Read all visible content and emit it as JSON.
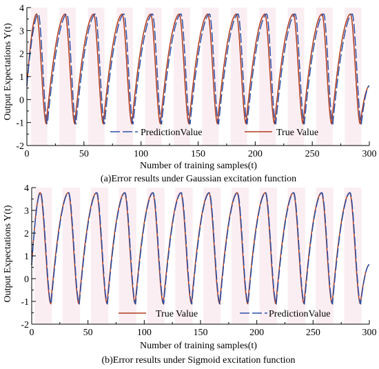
{
  "colors": {
    "true_value": "#b03a1a",
    "prediction_value": "#2a50a8",
    "axis": "#000000",
    "shade": "#f6d9e4"
  },
  "chart_data": [
    {
      "type": "line",
      "caption": "(a)Error results under Gaussian excitation function",
      "xlabel": "Number of training samples(t)",
      "ylabel": "Output Expectations Y(t)",
      "xlim": [
        0,
        300
      ],
      "ylim": [
        -2,
        4
      ],
      "xticks": [
        0,
        50,
        100,
        150,
        200,
        250,
        300
      ],
      "yticks": [
        -2,
        -1,
        0,
        1,
        2,
        3,
        4
      ],
      "grid": false,
      "legend": {
        "position": "bottom",
        "order": [
          "PredictionValue",
          "True Value"
        ]
      },
      "series": [
        {
          "name": "True Value",
          "color_key": "true_value",
          "style": "solid",
          "peaks": [
            {
              "x": 8.5,
              "y": 3.72
            },
            {
              "x": 33.5,
              "y": 3.72
            },
            {
              "x": 58.5,
              "y": 3.72
            },
            {
              "x": 83.5,
              "y": 3.72
            },
            {
              "x": 108.5,
              "y": 3.72
            },
            {
              "x": 133.5,
              "y": 3.72
            },
            {
              "x": 158.5,
              "y": 3.72
            },
            {
              "x": 183.5,
              "y": 3.72
            },
            {
              "x": 208.5,
              "y": 3.72
            },
            {
              "x": 233.5,
              "y": 3.72
            },
            {
              "x": 258.5,
              "y": 3.72
            },
            {
              "x": 283.5,
              "y": 3.72
            }
          ],
          "troughs": [
            {
              "x": 17,
              "y": -1.05
            },
            {
              "x": 42,
              "y": -1.05
            },
            {
              "x": 67,
              "y": -1.05
            },
            {
              "x": 92,
              "y": -1.05
            },
            {
              "x": 117,
              "y": -1.05
            },
            {
              "x": 142,
              "y": -1.05
            },
            {
              "x": 167,
              "y": -1.05
            },
            {
              "x": 192,
              "y": -1.05
            },
            {
              "x": 217,
              "y": -1.05
            },
            {
              "x": 242,
              "y": -1.05
            },
            {
              "x": 267,
              "y": -1.05
            },
            {
              "x": 292,
              "y": -1.05
            }
          ],
          "start": {
            "x": 0,
            "y": 0.6
          },
          "end": {
            "x": 300,
            "y": 0.6
          }
        },
        {
          "name": "PredictionValue",
          "color_key": "prediction_value",
          "style": "dashed",
          "peaks": [
            {
              "x": 10,
              "y": 3.72
            },
            {
              "x": 35,
              "y": 3.72
            },
            {
              "x": 60,
              "y": 3.72
            },
            {
              "x": 85,
              "y": 3.72
            },
            {
              "x": 110,
              "y": 3.72
            },
            {
              "x": 135,
              "y": 3.72
            },
            {
              "x": 160,
              "y": 3.72
            },
            {
              "x": 185,
              "y": 3.72
            },
            {
              "x": 210,
              "y": 3.72
            },
            {
              "x": 235,
              "y": 3.72
            },
            {
              "x": 260,
              "y": 3.72
            },
            {
              "x": 285,
              "y": 3.72
            }
          ],
          "troughs": [
            {
              "x": 18,
              "y": -1.05
            },
            {
              "x": 43,
              "y": -1.05
            },
            {
              "x": 68,
              "y": -1.05
            },
            {
              "x": 93,
              "y": -1.05
            },
            {
              "x": 118,
              "y": -1.05
            },
            {
              "x": 143,
              "y": -1.05
            },
            {
              "x": 168,
              "y": -1.05
            },
            {
              "x": 193,
              "y": -1.05
            },
            {
              "x": 218,
              "y": -1.05
            },
            {
              "x": 243,
              "y": -1.05
            },
            {
              "x": 268,
              "y": -1.05
            },
            {
              "x": 293,
              "y": -1.05
            }
          ],
          "start": {
            "x": 0,
            "y": 0.6
          },
          "end": {
            "x": 300,
            "y": 0.6
          }
        }
      ]
    },
    {
      "type": "line",
      "caption": "(b)Error results under Sigmoid excitation function",
      "xlabel": "Number of training samples(t)",
      "ylabel": "Output Expectations Y(t)",
      "xlim": [
        0,
        300
      ],
      "ylim": [
        -2,
        4
      ],
      "xticks": [
        0,
        50,
        100,
        150,
        200,
        250,
        300
      ],
      "yticks": [
        -2,
        -1,
        0,
        1,
        2,
        3,
        4
      ],
      "grid": false,
      "legend": {
        "position": "bottom",
        "order": [
          "True Value",
          "PredictionValue"
        ]
      },
      "series": [
        {
          "name": "True Value",
          "color_key": "true_value",
          "style": "solid",
          "peaks": [
            {
              "x": 7.5,
              "y": 3.78
            },
            {
              "x": 32.5,
              "y": 3.78
            },
            {
              "x": 57.5,
              "y": 3.78
            },
            {
              "x": 82.5,
              "y": 3.78
            },
            {
              "x": 107.5,
              "y": 3.78
            },
            {
              "x": 132.5,
              "y": 3.78
            },
            {
              "x": 157.5,
              "y": 3.78
            },
            {
              "x": 182.5,
              "y": 3.78
            },
            {
              "x": 207.5,
              "y": 3.78
            },
            {
              "x": 232.5,
              "y": 3.78
            },
            {
              "x": 257.5,
              "y": 3.78
            },
            {
              "x": 282.5,
              "y": 3.78
            }
          ],
          "troughs": [
            {
              "x": 17,
              "y": -1.1
            },
            {
              "x": 42,
              "y": -1.1
            },
            {
              "x": 67,
              "y": -1.1
            },
            {
              "x": 92,
              "y": -1.1
            },
            {
              "x": 117,
              "y": -1.1
            },
            {
              "x": 142,
              "y": -1.1
            },
            {
              "x": 167,
              "y": -1.1
            },
            {
              "x": 192,
              "y": -1.1
            },
            {
              "x": 217,
              "y": -1.1
            },
            {
              "x": 242,
              "y": -1.1
            },
            {
              "x": 267,
              "y": -1.1
            },
            {
              "x": 292,
              "y": -1.1
            }
          ],
          "start": {
            "x": 0,
            "y": 0.6
          },
          "end": {
            "x": 300,
            "y": 0.62
          }
        },
        {
          "name": "PredictionValue",
          "color_key": "prediction_value",
          "style": "dashed",
          "peaks": [
            {
              "x": 7.8,
              "y": 3.78
            },
            {
              "x": 32.8,
              "y": 3.78
            },
            {
              "x": 57.8,
              "y": 3.78
            },
            {
              "x": 82.8,
              "y": 3.78
            },
            {
              "x": 107.8,
              "y": 3.78
            },
            {
              "x": 132.8,
              "y": 3.78
            },
            {
              "x": 157.8,
              "y": 3.78
            },
            {
              "x": 182.8,
              "y": 3.78
            },
            {
              "x": 207.8,
              "y": 3.78
            },
            {
              "x": 232.8,
              "y": 3.78
            },
            {
              "x": 257.8,
              "y": 3.78
            },
            {
              "x": 282.8,
              "y": 3.78
            }
          ],
          "troughs": [
            {
              "x": 17.3,
              "y": -1.1
            },
            {
              "x": 42.3,
              "y": -1.1
            },
            {
              "x": 67.3,
              "y": -1.1
            },
            {
              "x": 92.3,
              "y": -1.1
            },
            {
              "x": 117.3,
              "y": -1.1
            },
            {
              "x": 142.3,
              "y": -1.1
            },
            {
              "x": 167.3,
              "y": -1.1
            },
            {
              "x": 192.3,
              "y": -1.1
            },
            {
              "x": 217.3,
              "y": -1.1
            },
            {
              "x": 242.3,
              "y": -1.1
            },
            {
              "x": 267.3,
              "y": -1.1
            },
            {
              "x": 292.3,
              "y": -1.1
            }
          ],
          "start": {
            "x": 0,
            "y": 0.6
          },
          "end": {
            "x": 300,
            "y": 0.62
          }
        }
      ]
    }
  ]
}
